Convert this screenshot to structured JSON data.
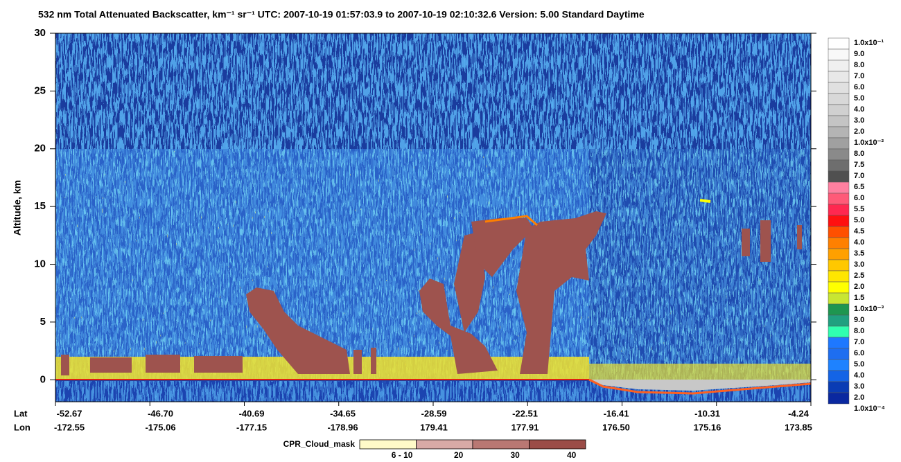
{
  "chart_data": {
    "type": "heatmap",
    "title": "532 nm Total Attenuated Backscatter, km⁻¹ sr⁻¹    UTC:  2007-10-19 01:57:03.9  to  2007-10-19 02:10:32.6    Version: 5.00  Standard  Daytime",
    "y_label": "Altitude, km",
    "ylim": [
      -1.9,
      30
    ],
    "yticks": [
      0,
      5,
      10,
      15,
      20,
      25,
      30
    ],
    "xtick_rows": [
      {
        "name": "Lat",
        "labels": [
          "-52.67",
          "-46.70",
          "-40.69",
          "-34.65",
          "-28.59",
          "-22.51",
          "-16.41",
          "-10.31",
          "-4.24"
        ]
      },
      {
        "name": "Lon",
        "labels": [
          "-172.55",
          "-175.06",
          "-177.15",
          "-178.96",
          "179.41",
          "177.91",
          "176.50",
          "175.16",
          "173.85"
        ]
      }
    ],
    "colorbar": {
      "labels": [
        "1.0x10⁻¹",
        "9.0",
        "8.0",
        "7.0",
        "6.0",
        "5.0",
        "4.0",
        "3.0",
        "2.0",
        "1.0x10⁻²",
        "8.0",
        "7.5",
        "7.0",
        "6.5",
        "6.0",
        "5.5",
        "5.0",
        "4.5",
        "4.0",
        "3.5",
        "3.0",
        "2.5",
        "2.0",
        "1.5",
        "1.0x10⁻³",
        "9.0",
        "8.0",
        "7.0",
        "6.0",
        "5.0",
        "4.0",
        "3.0",
        "2.0",
        "1.0x10⁻⁴"
      ],
      "colors": [
        "#ffffff",
        "#f8f8f8",
        "#f0f0f0",
        "#e8e8e8",
        "#e0e0e0",
        "#d8d8d8",
        "#d0d0d0",
        "#c4c4c4",
        "#b4b4b4",
        "#a0a0a0",
        "#8a8a8a",
        "#6e6e6e",
        "#505050",
        "#ff80a0",
        "#ff5a78",
        "#ff2850",
        "#ff1010",
        "#ff5000",
        "#ff8000",
        "#ffa000",
        "#ffc800",
        "#ffe600",
        "#ffff00",
        "#c8e632",
        "#1e9650",
        "#20a080",
        "#30ffb0",
        "#1e78ff",
        "#1e6ef0",
        "#1e82ff",
        "#1464e6",
        "#0a3cb4",
        "#0a28a0"
      ]
    },
    "cloud_mask": {
      "title": "CPR_Cloud_mask",
      "labels": [
        "6 - 10",
        "20",
        "30",
        "40"
      ],
      "colors": [
        "#fffac8",
        "#d8aaa6",
        "#b97873",
        "#9b4c47"
      ]
    }
  }
}
